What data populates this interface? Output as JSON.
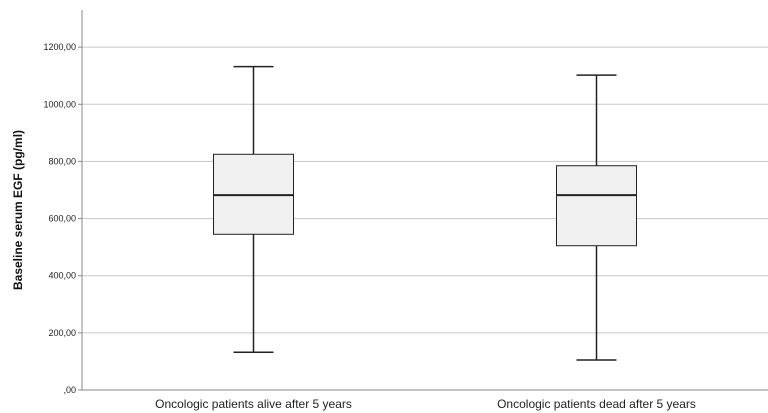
{
  "chart_data": {
    "type": "boxplot",
    "title": "",
    "xlabel": "",
    "ylabel": "Baseline serum EGF (pg/ml)",
    "ylim": [
      0,
      1330
    ],
    "yticks": [
      0,
      200,
      400,
      600,
      800,
      1000,
      1200
    ],
    "ytick_labels": [
      ",00",
      "200,00",
      "400,00",
      "600,00",
      "800,00",
      "1000,00",
      "1200,00"
    ],
    "grid": "horizontal",
    "categories": [
      "Oncologic patients alive after 5 years",
      "Oncologic patients dead after 5 years"
    ],
    "boxes": [
      {
        "min": 132,
        "q1": 545,
        "median": 682,
        "q3": 825,
        "max": 1132
      },
      {
        "min": 105,
        "q1": 505,
        "median": 682,
        "q3": 785,
        "max": 1102
      }
    ],
    "colors": {
      "box_fill": "#f0f0f0",
      "box_stroke": "#222222",
      "grid": "#c8c8c8",
      "axis": "#888888"
    }
  }
}
